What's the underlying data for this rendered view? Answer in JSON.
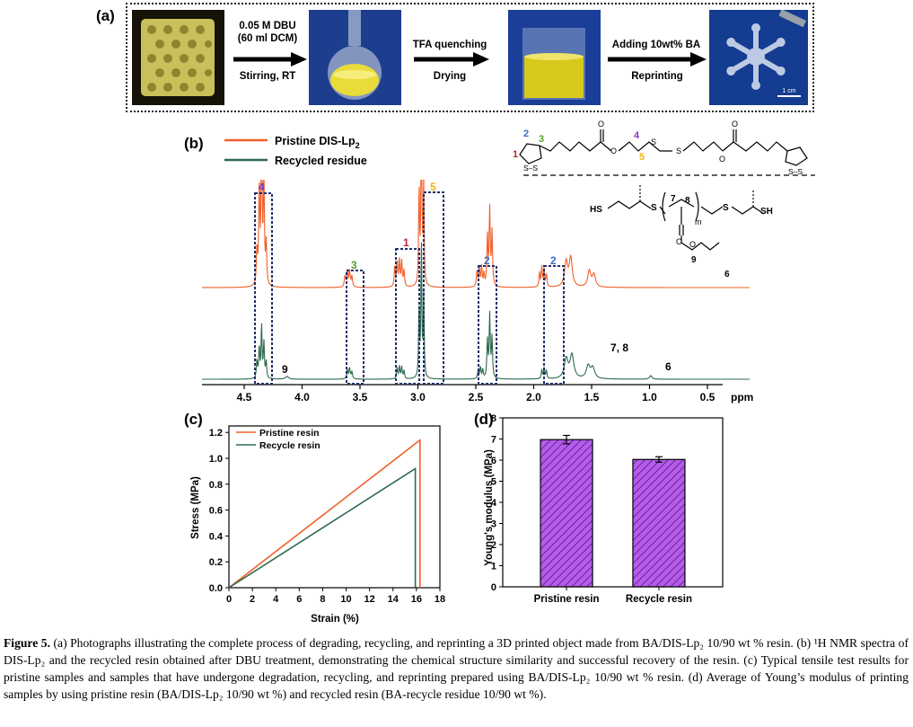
{
  "panel_a": {
    "label": "(a)",
    "step1_line1": "0.05 M DBU",
    "step1_line2": "(60 ml DCM)",
    "step1_bottom": "Stirring, RT",
    "step2_top": "TFA quenching",
    "step2_bottom": "Drying",
    "step3_top": "Adding 10wt% BA",
    "step3_bottom": "Reprinting",
    "scale_bar": "1 cm"
  },
  "panel_b": {
    "label": "(b)",
    "legend": [
      "Pristine DIS-Lp",
      "Recycled residue"
    ],
    "legend_sub": "2",
    "colors": {
      "pristine": "#f0602a",
      "recycled": "#2e6a4e"
    },
    "x_ticks": [
      "4.5",
      "4.0",
      "3.5",
      "3.0",
      "2.5",
      "2.0",
      "1.5",
      "1.0",
      "0.5"
    ],
    "x_unit": "ppm",
    "peak_labels_top": [
      {
        "text": "4",
        "color": "#7a3db8"
      },
      {
        "text": "3",
        "color": "#5aa02c"
      },
      {
        "text": "1",
        "color": "#c0282d"
      },
      {
        "text": "5",
        "color": "#f2b418"
      },
      {
        "text": "2",
        "color": "#3b6fc4"
      },
      {
        "text": "2",
        "color": "#3b6fc4"
      }
    ],
    "peak_labels_bottom": [
      "9",
      "7, 8",
      "6"
    ],
    "structure1_labels": {
      "n1": "1",
      "n2": "2",
      "n3": "3",
      "n4": "4",
      "n5": "5",
      "ss1": "S–S",
      "ss2": "S–S",
      "o": "O",
      "s": "S"
    },
    "structure2_labels": {
      "hs": "HS",
      "sh": "SH",
      "s": "S",
      "n7": "7",
      "n8": "8",
      "m": "m",
      "o": "O",
      "n9": "9",
      "n6": "6"
    }
  },
  "panel_c": {
    "label": "(c)",
    "legend": [
      "Pristine resin",
      "Recycle resin"
    ],
    "xlabel": "Strain (%)",
    "ylabel": "Stress (MPa)",
    "x_ticks": [
      "0",
      "2",
      "4",
      "6",
      "8",
      "10",
      "12",
      "14",
      "16",
      "18"
    ],
    "y_ticks": [
      "0.0",
      "0.2",
      "0.4",
      "0.6",
      "0.8",
      "1.0",
      "1.2"
    ]
  },
  "panel_d": {
    "label": "(d)",
    "xlabel_categories": [
      "Pristine resin",
      "Recycle resin"
    ],
    "ylabel": "Young's modulus (MPa)",
    "y_ticks": [
      "0",
      "1",
      "2",
      "3",
      "4",
      "5",
      "6",
      "7",
      "8"
    ]
  },
  "chart_data": [
    {
      "type": "line",
      "panel": "(c)",
      "xlabel": "Strain (%)",
      "ylabel": "Stress (MPa)",
      "xlim": [
        0,
        18
      ],
      "ylim": [
        0,
        1.25
      ],
      "series": [
        {
          "name": "Pristine resin",
          "color": "#f0602a",
          "x": [
            0,
            16.3,
            16.3
          ],
          "y": [
            0,
            1.14,
            0
          ]
        },
        {
          "name": "Recycle resin",
          "color": "#2e6a4e",
          "x": [
            0,
            15.9,
            15.9
          ],
          "y": [
            0,
            0.92,
            0
          ]
        }
      ]
    },
    {
      "type": "bar",
      "panel": "(d)",
      "categories": [
        "Pristine resin",
        "Recycle resin"
      ],
      "values": [
        6.97,
        6.03
      ],
      "errors": [
        0.2,
        0.13
      ],
      "ylabel": "Young's modulus (MPa)",
      "ylim": [
        0,
        8
      ],
      "bar_color": "#a64ddb"
    }
  ],
  "caption": {
    "fig_label": "Figure 5.",
    "text": " (a) Photographs illustrating the complete process of degrading, recycling, and reprinting a 3D printed object made from BA/DIS-Lp₂ 10/90 wt % resin. (b) ¹H NMR spectra of DIS-Lp₂ and the recycled resin obtained after DBU treatment, demonstrating the chemical structure similarity and successful recovery of the resin. (c) Typical tensile test results for pristine samples and samples that have undergone degradation, recycling, and reprinting prepared using BA/DIS-Lp₂ 10/90 wt % resin. (d) Average of Young’s modulus of printing samples by using pristine resin (BA/DIS-Lp₂ 10/90 wt %) and recycled resin (BA-recycle residue 10/90 wt %)."
  }
}
